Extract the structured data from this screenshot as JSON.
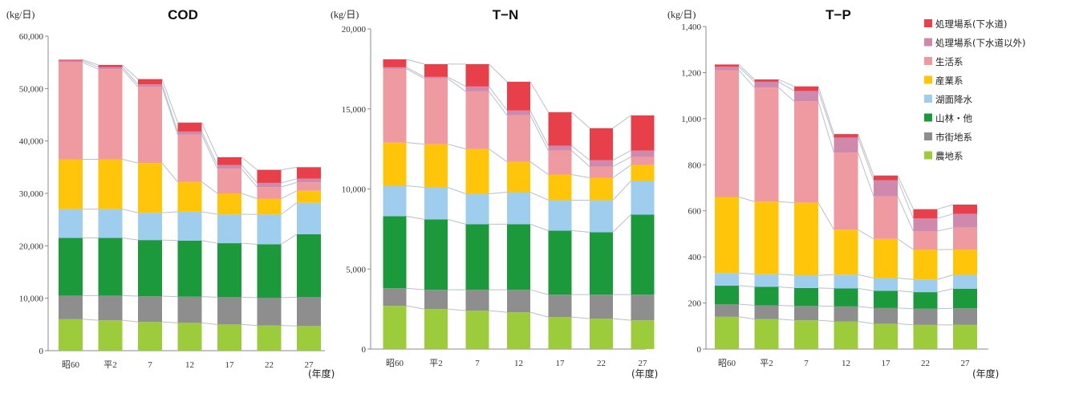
{
  "colors": {
    "sewage_treatment": "#e8404b",
    "treatment_non_sewage": "#cf89ad",
    "domestic": "#ef9aa0",
    "industrial": "#ffc50a",
    "lake_rainfall": "#9fcdee",
    "forest_other": "#1c9a3b",
    "urban_land": "#8e8e8e",
    "farmland": "#9ccc3c"
  },
  "legend": [
    {
      "key": "sewage_treatment",
      "label": "処理場系(下水道)"
    },
    {
      "key": "treatment_non_sewage",
      "label": "処理場系(下水道以外)"
    },
    {
      "key": "domestic",
      "label": "生活系"
    },
    {
      "key": "industrial",
      "label": "産業系"
    },
    {
      "key": "lake_rainfall",
      "label": "湖面降水"
    },
    {
      "key": "forest_other",
      "label": "山林・他"
    },
    {
      "key": "urban_land",
      "label": "市街地系"
    },
    {
      "key": "farmland",
      "label": "農地系"
    }
  ],
  "stack_order": [
    "farmland",
    "urban_land",
    "forest_other",
    "lake_rainfall",
    "industrial",
    "domestic",
    "treatment_non_sewage",
    "sewage_treatment"
  ],
  "chart_data": [
    {
      "type": "bar",
      "title": "COD",
      "ylabel": "(kg/日)",
      "xlabel": "(年度)",
      "ylim": [
        0,
        60000
      ],
      "yticks": [
        "0",
        "10,000",
        "20,000",
        "30,000",
        "40,000",
        "50,000",
        "60,000"
      ],
      "categories": [
        "昭60",
        "平2",
        "7",
        "12",
        "17",
        "22",
        "27"
      ],
      "series": [
        {
          "key": "farmland",
          "name": "農地系",
          "values": [
            6000,
            5800,
            5500,
            5300,
            5000,
            4800,
            4700
          ]
        },
        {
          "key": "urban_land",
          "name": "市街地系",
          "values": [
            4500,
            4700,
            4900,
            5000,
            5200,
            5300,
            5500
          ]
        },
        {
          "key": "forest_other",
          "name": "山林・他",
          "values": [
            11000,
            11000,
            10700,
            10700,
            10300,
            10200,
            12000
          ]
        },
        {
          "key": "lake_rainfall",
          "name": "湖面降水",
          "values": [
            5500,
            5500,
            5200,
            5500,
            5500,
            5700,
            6000
          ]
        },
        {
          "key": "industrial",
          "name": "産業系",
          "values": [
            9500,
            9500,
            9500,
            5700,
            4000,
            3000,
            2300
          ]
        },
        {
          "key": "domestic",
          "name": "生活系",
          "values": [
            18500,
            17200,
            14500,
            9000,
            4700,
            2200,
            1600
          ]
        },
        {
          "key": "treatment_non_sewage",
          "name": "処理場系(下水道以外)",
          "values": [
            300,
            400,
            500,
            600,
            700,
            800,
            700
          ]
        },
        {
          "key": "sewage_treatment",
          "name": "処理場系(下水道)",
          "values": [
            200,
            400,
            1000,
            1700,
            1500,
            2500,
            2200
          ]
        }
      ]
    },
    {
      "type": "bar",
      "title": "T−N",
      "ylabel": "(kg/日)",
      "xlabel": "(年度)",
      "ylim": [
        0,
        20000
      ],
      "yticks": [
        "0",
        "5,000",
        "10,000",
        "15,000",
        "20,000"
      ],
      "categories": [
        "昭60",
        "平2",
        "7",
        "12",
        "17",
        "22",
        "27"
      ],
      "series": [
        {
          "key": "farmland",
          "name": "農地系",
          "values": [
            2700,
            2500,
            2400,
            2300,
            2000,
            1900,
            1800
          ]
        },
        {
          "key": "urban_land",
          "name": "市街地系",
          "values": [
            1100,
            1200,
            1300,
            1400,
            1400,
            1500,
            1600
          ]
        },
        {
          "key": "forest_other",
          "name": "山林・他",
          "values": [
            4500,
            4400,
            4100,
            4100,
            4000,
            3900,
            5000
          ]
        },
        {
          "key": "lake_rainfall",
          "name": "湖面降水",
          "values": [
            1900,
            2000,
            1900,
            2000,
            1900,
            2000,
            2100
          ]
        },
        {
          "key": "industrial",
          "name": "産業系",
          "values": [
            2700,
            2700,
            2800,
            1900,
            1600,
            1400,
            1000
          ]
        },
        {
          "key": "domestic",
          "name": "生活系",
          "values": [
            4600,
            4100,
            3600,
            2900,
            1500,
            700,
            500
          ]
        },
        {
          "key": "treatment_non_sewage",
          "name": "処理場系(下水道以外)",
          "values": [
            100,
            100,
            300,
            300,
            300,
            400,
            400
          ]
        },
        {
          "key": "sewage_treatment",
          "name": "処理場系(下水道)",
          "values": [
            500,
            800,
            1400,
            1800,
            2100,
            2000,
            2200
          ]
        }
      ]
    },
    {
      "type": "bar",
      "title": "T−P",
      "ylabel": "(kg/日)",
      "xlabel": "(年度)",
      "ylim": [
        0,
        1400
      ],
      "yticks": [
        "0",
        "200",
        "400",
        "600",
        "800",
        "1,000",
        "1,200",
        "1,400"
      ],
      "categories": [
        "昭60",
        "平2",
        "7",
        "12",
        "17",
        "22",
        "27"
      ],
      "series": [
        {
          "key": "farmland",
          "name": "農地系",
          "values": [
            140,
            130,
            125,
            120,
            110,
            105,
            105
          ]
        },
        {
          "key": "urban_land",
          "name": "市街地系",
          "values": [
            55,
            60,
            62,
            65,
            68,
            70,
            72
          ]
        },
        {
          "key": "forest_other",
          "name": "山林・他",
          "values": [
            80,
            80,
            78,
            78,
            75,
            72,
            85
          ]
        },
        {
          "key": "lake_rainfall",
          "name": "湖面降水",
          "values": [
            55,
            55,
            55,
            60,
            55,
            55,
            60
          ]
        },
        {
          "key": "industrial",
          "name": "産業系",
          "values": [
            330,
            315,
            315,
            195,
            170,
            130,
            110
          ]
        },
        {
          "key": "domestic",
          "name": "生活系",
          "values": [
            550,
            495,
            440,
            335,
            185,
            80,
            95
          ]
        },
        {
          "key": "treatment_non_sewage",
          "name": "処理場系(下水道以外)",
          "values": [
            15,
            25,
            45,
            65,
            70,
            55,
            60
          ]
        },
        {
          "key": "sewage_treatment",
          "name": "処理場系(下水道)",
          "values": [
            10,
            10,
            20,
            15,
            20,
            40,
            40
          ]
        }
      ]
    }
  ]
}
